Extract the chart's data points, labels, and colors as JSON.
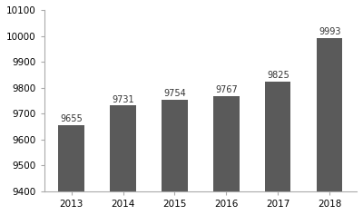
{
  "categories": [
    "2013",
    "2014",
    "2015",
    "2016",
    "2017",
    "2018"
  ],
  "values": [
    9655,
    9731,
    9754,
    9767,
    9825,
    9993
  ],
  "bar_color": "#5a5a5a",
  "ylim": [
    9400,
    10100
  ],
  "yticks": [
    9400,
    9500,
    9600,
    9700,
    9800,
    9900,
    10000,
    10100
  ],
  "label_fontsize": 7.0,
  "tick_fontsize": 7.5,
  "bar_width": 0.5,
  "background_color": "#ffffff",
  "annotation_color": "#333333",
  "spine_color": "#aaaaaa"
}
